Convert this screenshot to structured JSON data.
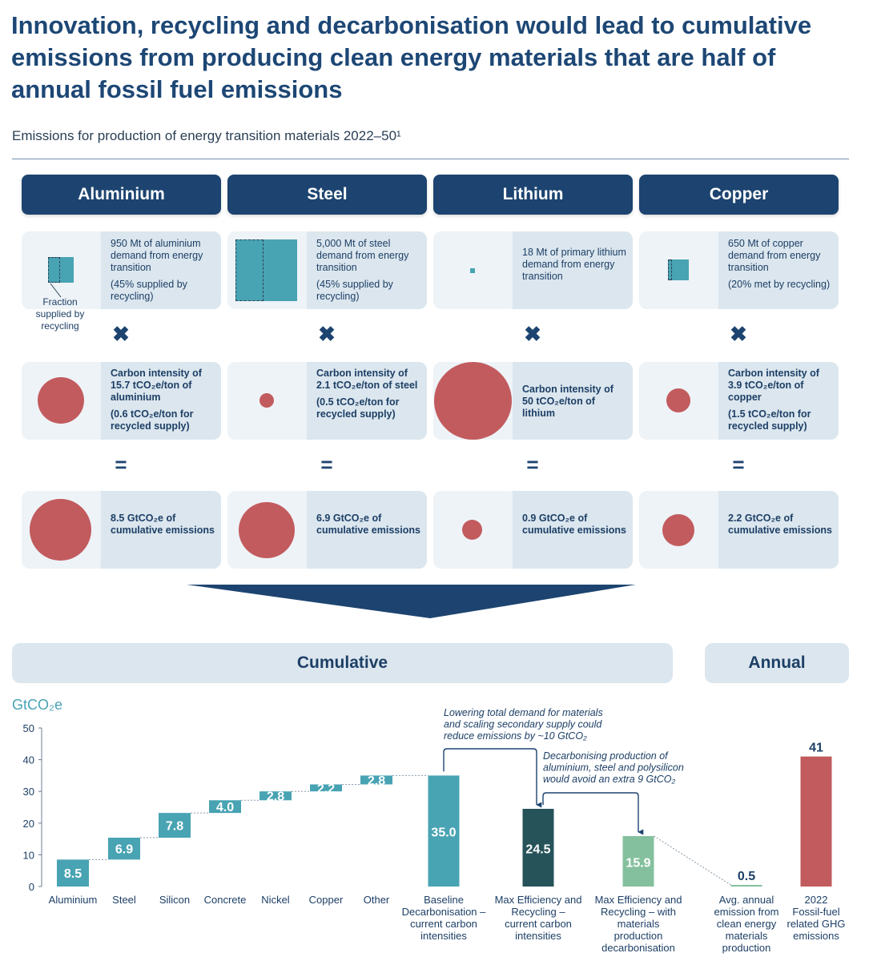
{
  "title": "Innovation, recycling and decarbonisation would lead to cumulative emissions from producing clean energy materials that are half of annual fossil fuel emissions",
  "subtitle": "Emissions for production of energy transition materials 2022–50¹",
  "columns": [
    {
      "name": "Aluminium",
      "demand_text": "950 Mt of aluminium demand from energy transition",
      "demand_note": "(45% supplied by recycling)",
      "intensity_text": "Carbon intensity of 15.7 tCO₂e/ton of aluminium",
      "intensity_note": "(0.6 tCO₂e/ton for recycled supply)",
      "result_text": "8.5 GtCO₂e of cumulative emissions"
    },
    {
      "name": "Steel",
      "demand_text": "5,000 Mt of steel demand from energy transition",
      "demand_note": "(45% supplied by recycling)",
      "intensity_text": "Carbon intensity of 2.1 tCO₂e/ton of steel",
      "intensity_note": "(0.5 tCO₂e/ton for recycled supply)",
      "result_text": "6.9 GtCO₂e of cumulative emissions"
    },
    {
      "name": "Lithium",
      "demand_text": "18 Mt of primary lithium demand from energy transition",
      "demand_note": "",
      "intensity_text": "Carbon intensity of 50 tCO₂e/ton of lithium",
      "intensity_note": "",
      "result_text": "0.9 GtCO₂e of cumulative emissions"
    },
    {
      "name": "Copper",
      "demand_text": "650 Mt of copper demand from energy transition",
      "demand_note": "(20% met by recycling)",
      "intensity_text": "Carbon intensity of 3.9 tCO₂e/ton of copper",
      "intensity_note": "(1.5 tCO₂e/ton for recycled supply)",
      "result_text": "2.2 GtCO₂e of cumulative emissions"
    }
  ],
  "fraction_label": "Fraction supplied by recycling",
  "operators": {
    "times": "✖",
    "equals": "="
  },
  "bands": {
    "cumulative": "Cumulative",
    "annual": "Annual"
  },
  "annotations": {
    "demand": "Lowering total demand for materials and scaling secondary supply could reduce emissions by ~10 GtCO₂",
    "decarb": "Decarbonising production of aluminium, steel and polysilicon would avoid an extra 9 GtCO₂"
  },
  "colors": {
    "teal": "#48a3b3",
    "dark_teal": "#265359",
    "green": "#84c09d",
    "red": "#c25b5e",
    "navy": "#1d4470"
  },
  "chart_data": {
    "type": "bar",
    "ylabel": "GtCO₂e",
    "ylim": [
      0,
      50
    ],
    "yticks": [
      0,
      10,
      20,
      30,
      40,
      50
    ],
    "grid": false,
    "waterfall": [
      {
        "label": "Aluminium",
        "value": 8.5,
        "value_label": "8.5"
      },
      {
        "label": "Steel",
        "value": 6.9,
        "value_label": "6.9"
      },
      {
        "label": "Silicon",
        "value": 7.8,
        "value_label": "7.8"
      },
      {
        "label": "Concrete",
        "value": 4.0,
        "value_label": "4.0"
      },
      {
        "label": "Nickel",
        "value": 2.8,
        "value_label": "2.8"
      },
      {
        "label": "Copper",
        "value": 2.2,
        "value_label": "2.2"
      },
      {
        "label": "Other",
        "value": 2.8,
        "value_label": "2.8"
      }
    ],
    "totals": [
      {
        "label": "Baseline Decarbonisation – current carbon intensities",
        "value": 35.0,
        "value_label": "35.0",
        "color": "teal"
      },
      {
        "label": "Max Efficiency and Recycling – current carbon intensities",
        "value": 24.5,
        "value_label": "24.5",
        "color": "dark_teal"
      },
      {
        "label": "Max Efficiency and Recycling – with materials production decarbonisation",
        "value": 15.9,
        "value_label": "15.9",
        "color": "green"
      }
    ],
    "annual": [
      {
        "label": "Avg. annual emission from clean energy materials production",
        "value": 0.5,
        "value_label": "0.5",
        "color": "green"
      },
      {
        "label": "2022 Fossil-fuel related GHG emissions",
        "value": 41,
        "value_label": "41",
        "color": "red"
      }
    ]
  }
}
